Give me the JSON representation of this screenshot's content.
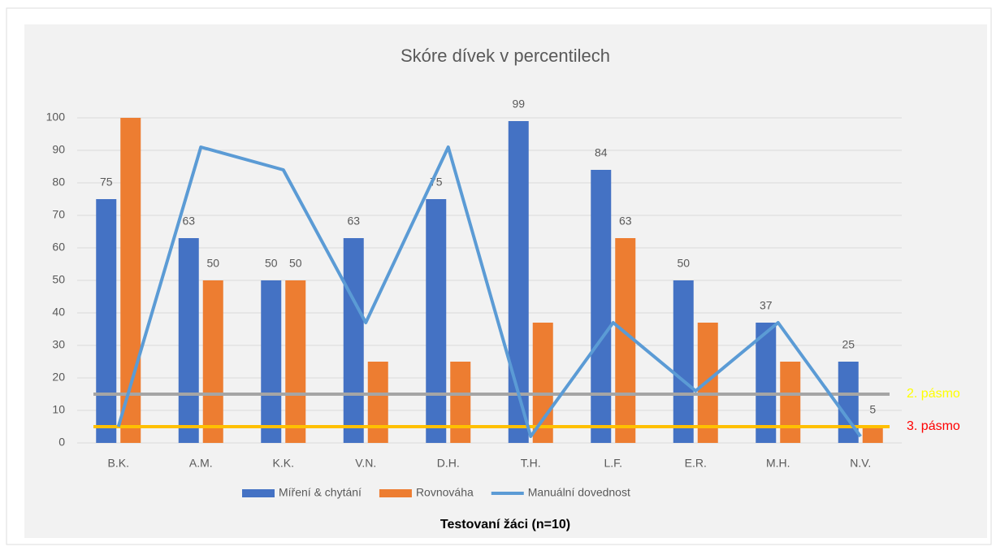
{
  "chart_data": {
    "type": "bar_line",
    "title": "Skóre dívek v percentilech",
    "x_label": "Testovaní žáci (n=10)",
    "categories": [
      "B.K.",
      "A.M.",
      "K.K.",
      "V.N.",
      "D.H.",
      "T.H.",
      "L.F.",
      "E.R.",
      "M.H.",
      "N.V."
    ],
    "series": [
      {
        "name": "Míření & chytání",
        "type": "bar",
        "color": "#4472c4",
        "values": [
          75,
          63,
          50,
          63,
          75,
          99,
          84,
          50,
          37,
          25
        ],
        "value_labels": [
          75,
          63,
          50,
          63,
          75,
          99,
          84,
          50,
          37,
          25
        ]
      },
      {
        "name": "Rovnováha",
        "type": "bar",
        "color": "#ed7d31",
        "values": [
          100,
          50,
          50,
          25,
          25,
          37,
          63,
          37,
          25,
          5
        ],
        "value_labels": [
          null,
          50,
          50,
          null,
          null,
          null,
          63,
          null,
          null,
          5
        ]
      },
      {
        "name": "Manuální dovednost",
        "type": "line",
        "color": "#5b9bd5",
        "values": [
          5,
          91,
          84,
          37,
          91,
          2,
          37,
          16,
          37,
          2
        ]
      }
    ],
    "reference_lines": [
      {
        "value": 15,
        "label": "2. pásmo",
        "color": "#a5a5a5",
        "label_color": "#ffff00"
      },
      {
        "value": 5,
        "label": "3. pásmo",
        "color": "#ffc000",
        "label_color": "#ff0000"
      }
    ],
    "ylim": [
      0,
      100
    ],
    "yticks": [
      0,
      10,
      20,
      30,
      40,
      50,
      60,
      70,
      80,
      90,
      100
    ],
    "grid": true,
    "legend": "bottom"
  }
}
